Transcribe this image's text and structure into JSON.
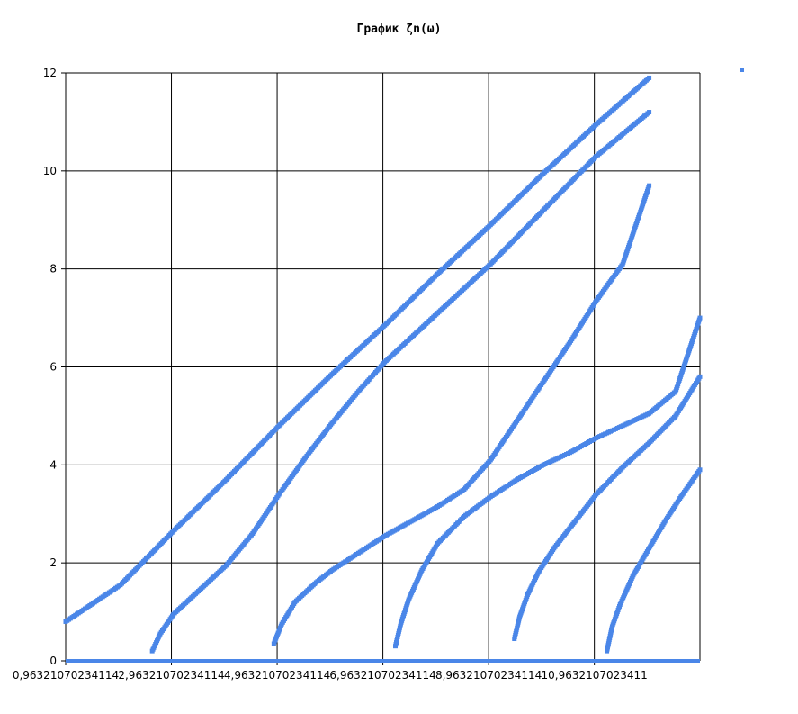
{
  "chart_data": {
    "type": "scatter",
    "title": "График ζn(ω)",
    "xlabel": "",
    "ylabel": "",
    "xlim": [
      0.96321070234114,
      12.96
    ],
    "ylim": [
      0,
      12
    ],
    "x_tick_labels": [
      "0,96321070234114",
      "2,96321070234114",
      "4,96321070234114",
      "6,96321070234114",
      "8,96321070234114",
      "10,9632107023411"
    ],
    "x_tick_values": [
      0.96321070234114,
      2.96321070234114,
      4.96321070234114,
      6.96321070234114,
      8.96321070234114,
      10.9632107023411
    ],
    "y_ticks": [
      0,
      2,
      4,
      6,
      8,
      10,
      12
    ],
    "y_tick_labels": [
      "0",
      "2",
      "4",
      "6",
      "8",
      "10",
      "12"
    ],
    "grid": true,
    "legend": "top-right",
    "series_color": "#4a86e8",
    "series": [
      {
        "points": [
          [
            0.963,
            0.8
          ],
          [
            2.0,
            1.55
          ],
          [
            3.0,
            2.65
          ],
          [
            4.0,
            3.7
          ],
          [
            5.0,
            4.8
          ],
          [
            6.0,
            5.85
          ],
          [
            7.0,
            6.85
          ],
          [
            8.0,
            7.9
          ],
          [
            9.0,
            8.9
          ],
          [
            10.0,
            9.95
          ],
          [
            11.0,
            10.95
          ],
          [
            12.0,
            11.9
          ]
        ]
      },
      {
        "points": [
          [
            2.6,
            0.2
          ],
          [
            2.75,
            0.55
          ],
          [
            3.0,
            0.95
          ],
          [
            3.5,
            1.45
          ],
          [
            4.0,
            1.95
          ],
          [
            4.5,
            2.6
          ],
          [
            5.0,
            3.4
          ],
          [
            5.5,
            4.15
          ],
          [
            6.0,
            4.85
          ],
          [
            6.5,
            5.5
          ],
          [
            7.0,
            6.1
          ],
          [
            8.0,
            7.1
          ],
          [
            9.0,
            8.1
          ],
          [
            10.0,
            9.2
          ],
          [
            11.0,
            10.3
          ],
          [
            12.0,
            11.2
          ]
        ]
      },
      {
        "points": [
          [
            4.9,
            0.35
          ],
          [
            5.05,
            0.75
          ],
          [
            5.3,
            1.2
          ],
          [
            5.7,
            1.6
          ],
          [
            6.0,
            1.85
          ],
          [
            6.5,
            2.2
          ],
          [
            7.0,
            2.55
          ],
          [
            7.5,
            2.85
          ],
          [
            8.0,
            3.15
          ],
          [
            8.5,
            3.5
          ],
          [
            9.0,
            4.1
          ],
          [
            9.5,
            4.9
          ],
          [
            10.0,
            5.7
          ],
          [
            10.5,
            6.5
          ],
          [
            11.0,
            7.35
          ],
          [
            11.5,
            8.1
          ],
          [
            12.0,
            9.7
          ]
        ]
      },
      {
        "points": [
          [
            7.2,
            0.3
          ],
          [
            7.3,
            0.75
          ],
          [
            7.45,
            1.25
          ],
          [
            7.7,
            1.85
          ],
          [
            8.0,
            2.4
          ],
          [
            8.5,
            2.95
          ],
          [
            9.0,
            3.35
          ],
          [
            9.5,
            3.7
          ],
          [
            10.0,
            4.0
          ],
          [
            10.5,
            4.25
          ],
          [
            11.0,
            4.55
          ],
          [
            11.5,
            4.8
          ],
          [
            12.0,
            5.05
          ],
          [
            12.5,
            5.5
          ],
          [
            12.96,
            7.0
          ]
        ]
      },
      {
        "points": [
          [
            9.45,
            0.45
          ],
          [
            9.55,
            0.9
          ],
          [
            9.7,
            1.35
          ],
          [
            9.9,
            1.8
          ],
          [
            10.2,
            2.3
          ],
          [
            10.6,
            2.85
          ],
          [
            11.0,
            3.4
          ],
          [
            11.5,
            3.95
          ],
          [
            12.0,
            4.45
          ],
          [
            12.5,
            5.0
          ],
          [
            12.96,
            5.8
          ]
        ]
      },
      {
        "points": [
          [
            11.2,
            0.2
          ],
          [
            11.3,
            0.7
          ],
          [
            11.45,
            1.15
          ],
          [
            11.7,
            1.75
          ],
          [
            12.0,
            2.3
          ],
          [
            12.3,
            2.85
          ],
          [
            12.6,
            3.35
          ],
          [
            12.96,
            3.9
          ]
        ]
      },
      {
        "points": [
          [
            0.963,
            0.0
          ],
          [
            12.96,
            0.0
          ]
        ]
      }
    ]
  }
}
